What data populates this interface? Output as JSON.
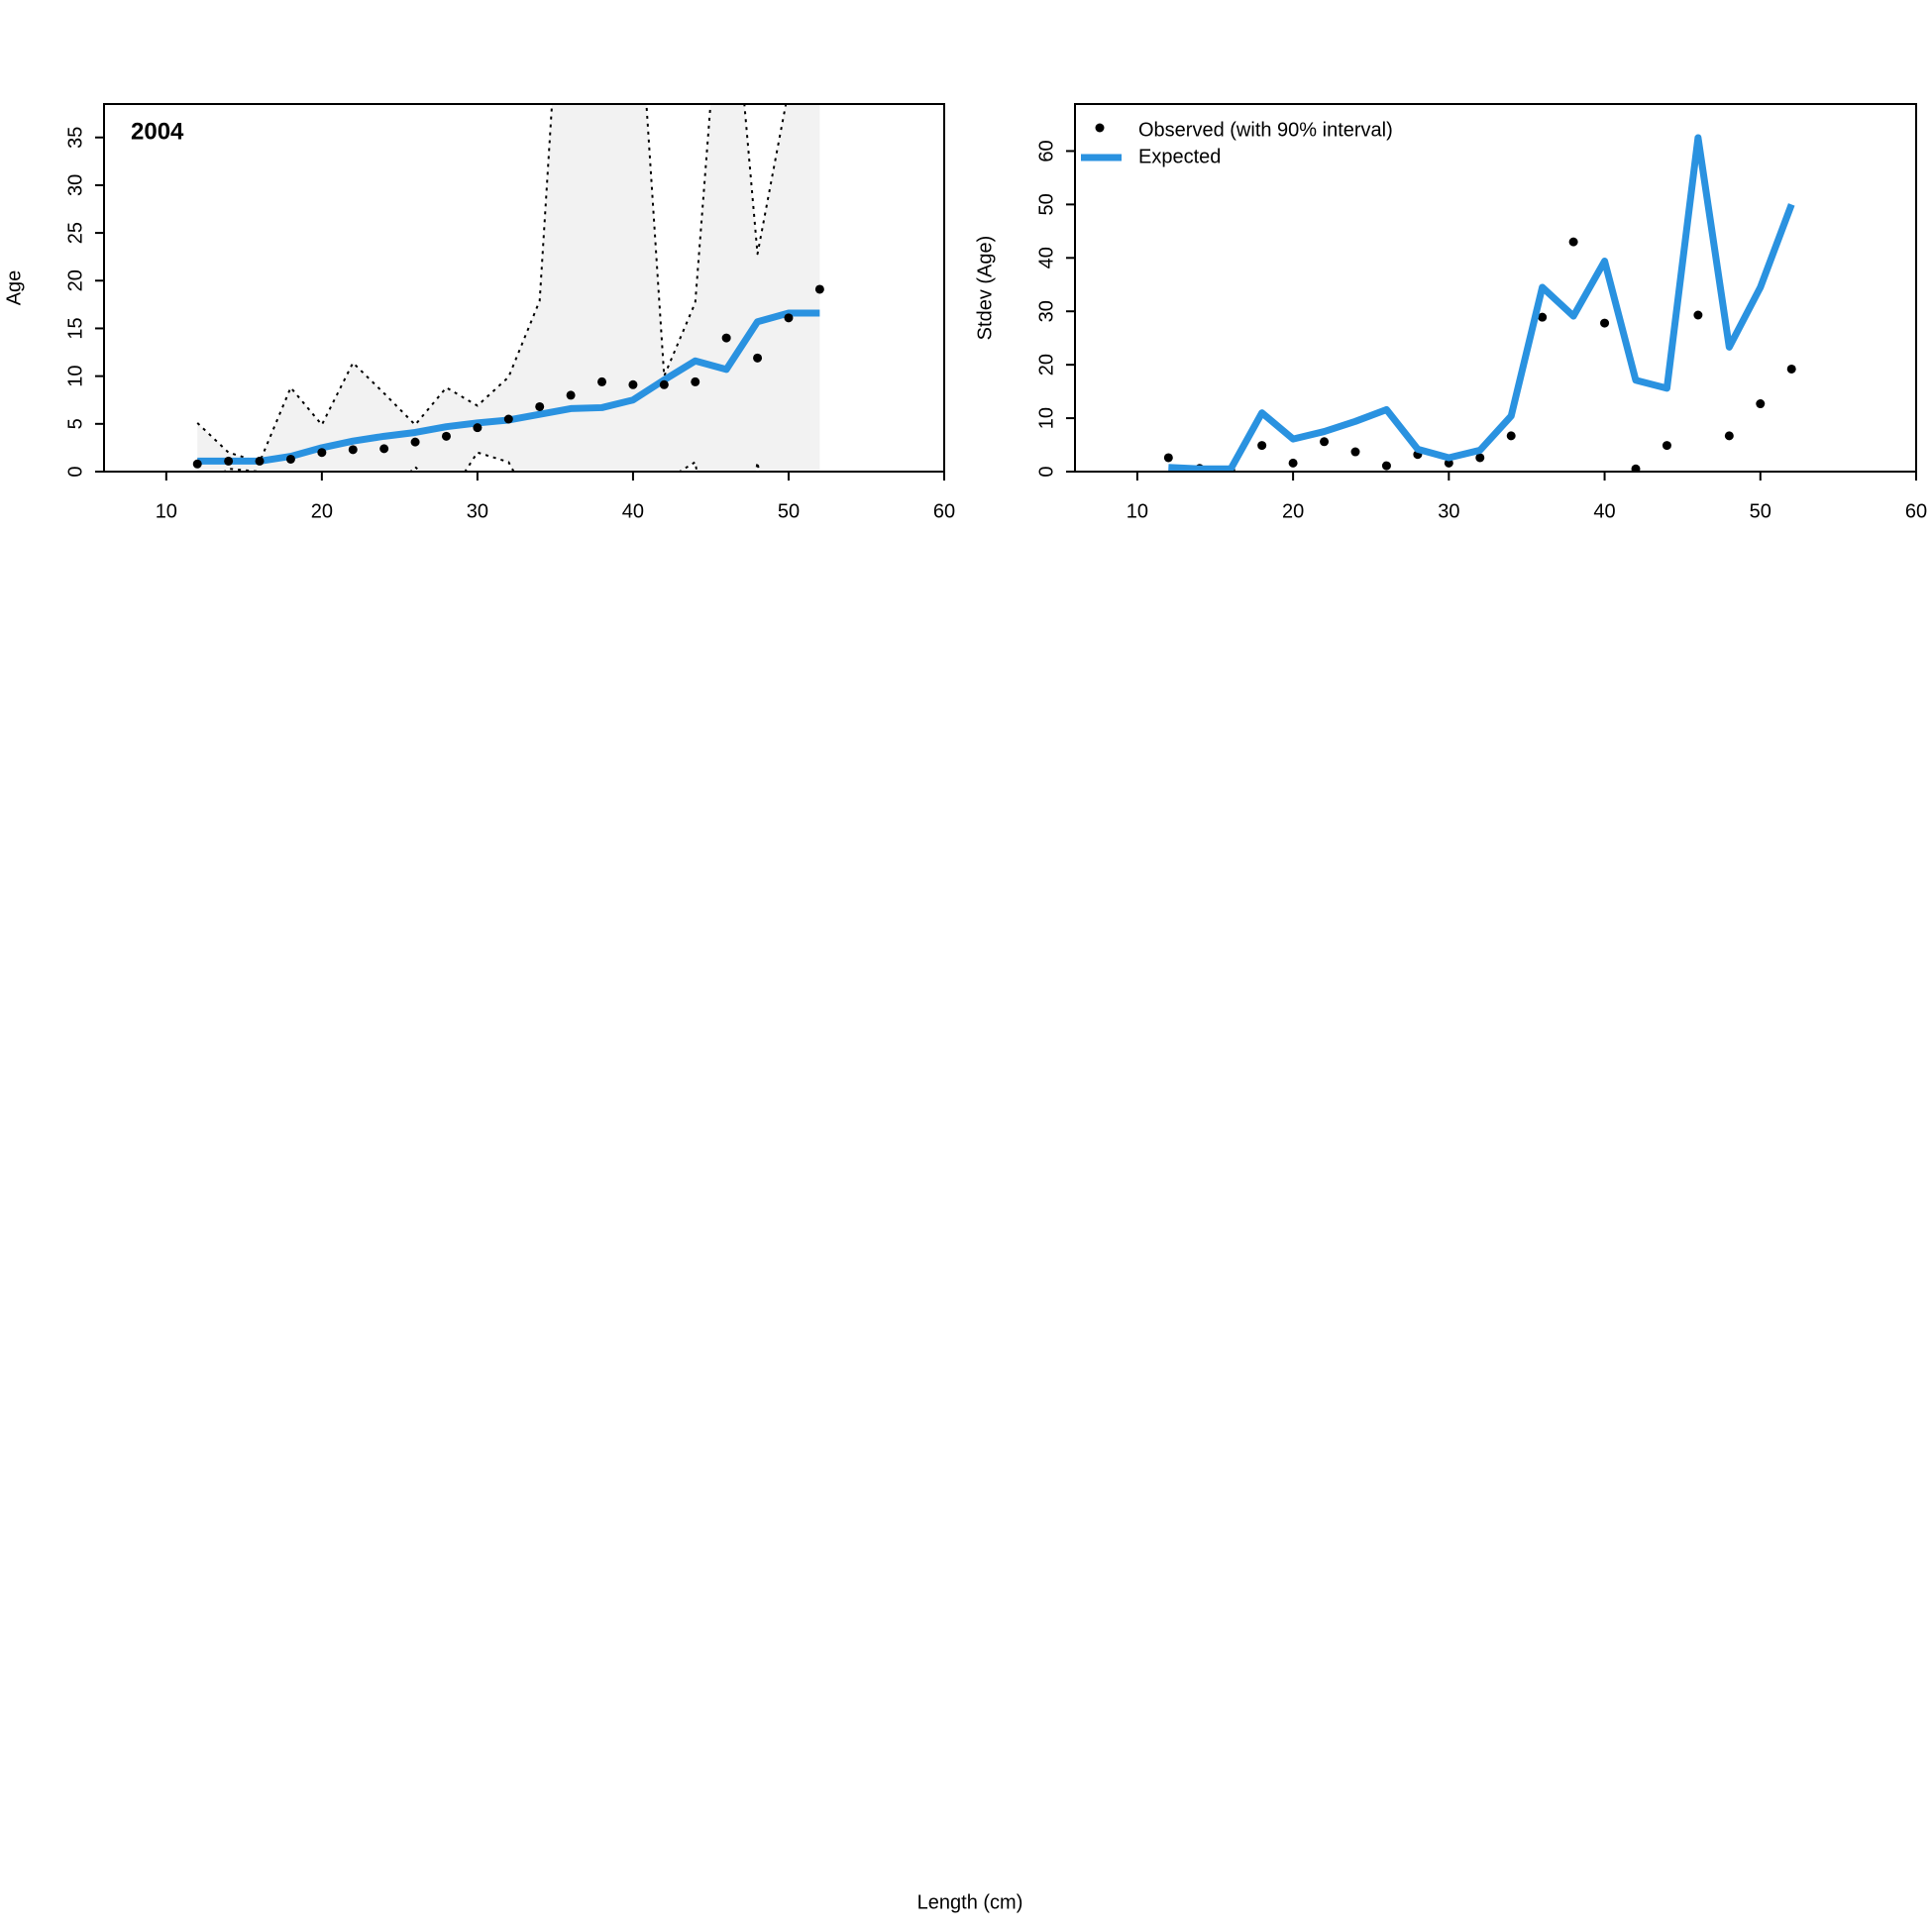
{
  "chart_data": [
    {
      "type": "line",
      "annotation": "2004",
      "ylabel": "Age",
      "xlabel": "Length (cm)",
      "x": [
        12,
        14,
        16,
        18,
        20,
        22,
        24,
        26,
        28,
        30,
        32,
        34,
        36,
        38,
        40,
        42,
        44,
        46,
        48,
        50,
        52
      ],
      "observed": [
        0.8,
        1.1,
        1.1,
        1.3,
        2.0,
        2.3,
        2.4,
        3.1,
        3.7,
        4.6,
        5.5,
        6.8,
        8.0,
        9.4,
        9.1,
        9.1,
        9.4,
        14.0,
        11.9,
        16.1,
        19.1
      ],
      "expected": [
        1.1,
        1.1,
        1.1,
        1.6,
        2.5,
        3.2,
        3.7,
        4.1,
        4.7,
        5.1,
        5.4,
        6.0,
        6.6,
        6.7,
        7.5,
        9.6,
        11.6,
        10.7,
        15.7,
        16.6,
        16.6
      ],
      "upper": [
        5.1,
        2.0,
        1.0,
        8.8,
        4.9,
        11.4,
        8.2,
        4.9,
        8.8,
        6.9,
        9.9,
        17.9,
        70,
        70,
        60,
        10,
        17.7,
        60,
        22.8,
        40,
        60
      ],
      "lower": [
        -2,
        0.3,
        0.0,
        -3,
        -3,
        -4,
        -3,
        0.5,
        -3,
        2.0,
        1.0,
        -5,
        -10,
        -10,
        -10,
        -1,
        1.0,
        -20,
        1.0,
        -20,
        -30
      ],
      "point_color": "#000000",
      "line_color": "#2a92e0",
      "band_color": "#f2f2f2",
      "xlim": [
        6,
        60
      ],
      "ylim": [
        0,
        38.5
      ],
      "xticks": [
        10,
        20,
        30,
        40,
        50,
        60
      ],
      "yticks": [
        0,
        5,
        10,
        15,
        20,
        25,
        30,
        35
      ]
    },
    {
      "type": "line",
      "ylabel": "Stdev (Age)",
      "x": [
        12,
        14,
        16,
        18,
        20,
        22,
        24,
        26,
        28,
        30,
        32,
        34,
        36,
        38,
        40,
        42,
        44,
        46,
        48,
        50,
        52
      ],
      "series": [
        {
          "name": "Observed (with 90% interval)",
          "color": "#000000",
          "values": [
            2.6,
            0.6,
            0.3,
            4.9,
            1.6,
            5.6,
            3.7,
            1.1,
            3.2,
            1.6,
            2.6,
            6.7,
            28.9,
            43.0,
            27.8,
            0.5,
            4.9,
            29.3,
            6.7,
            12.7,
            19.2
          ]
        },
        {
          "name": "Expected",
          "color": "#2a92e0",
          "values": [
            0.8,
            0.5,
            0.5,
            11.0,
            6.1,
            7.5,
            9.4,
            11.6,
            4.2,
            2.6,
            4.0,
            10.4,
            34.5,
            29.1,
            39.4,
            17.1,
            15.6,
            62.5,
            23.3,
            34.5,
            50.0
          ]
        }
      ],
      "legend": "top-left",
      "xlim": [
        6,
        60
      ],
      "ylim": [
        0,
        68.8
      ],
      "xticks": [
        10,
        20,
        30,
        40,
        50,
        60
      ],
      "yticks": [
        0,
        10,
        20,
        30,
        40,
        50,
        60
      ]
    }
  ]
}
